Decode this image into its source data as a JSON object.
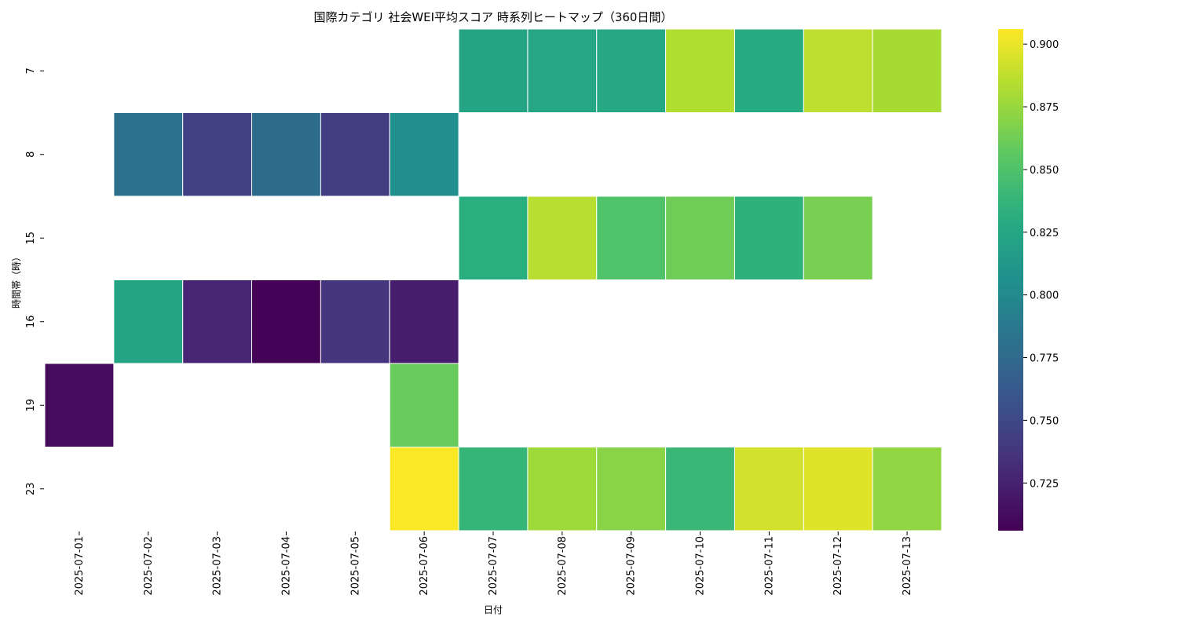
{
  "chart_data": {
    "type": "heatmap",
    "title": "国際カテゴリ 社会WEI平均スコア 時系列ヒートマップ（360日間）",
    "xlabel": "日付",
    "ylabel": "時間帯（時）",
    "x": [
      "2025-07-01",
      "2025-07-02",
      "2025-07-03",
      "2025-07-04",
      "2025-07-05",
      "2025-07-06",
      "2025-07-07",
      "2025-07-08",
      "2025-07-09",
      "2025-07-10",
      "2025-07-11",
      "2025-07-12",
      "2025-07-13"
    ],
    "y": [
      "7",
      "8",
      "15",
      "16",
      "19",
      "23"
    ],
    "values": [
      [
        null,
        null,
        null,
        null,
        null,
        null,
        0.823,
        0.825,
        0.827,
        0.883,
        0.83,
        0.887,
        0.88
      ],
      [
        null,
        0.78,
        0.745,
        0.777,
        0.743,
        0.805,
        null,
        null,
        null,
        null,
        null,
        null,
        null
      ],
      [
        null,
        null,
        null,
        null,
        null,
        null,
        0.832,
        0.885,
        0.85,
        0.862,
        0.835,
        0.865,
        null
      ],
      [
        null,
        0.822,
        0.727,
        0.707,
        0.737,
        0.722,
        null,
        null,
        null,
        null,
        null,
        null,
        null
      ],
      [
        0.712,
        null,
        null,
        null,
        null,
        0.86,
        null,
        null,
        null,
        null,
        null,
        null,
        null
      ],
      [
        null,
        null,
        null,
        null,
        null,
        0.905,
        0.838,
        0.877,
        0.87,
        0.84,
        0.893,
        0.897,
        0.873
      ]
    ],
    "colormap": "viridis",
    "vmin": 0.706,
    "vmax": 0.906,
    "colorbar_ticks": [
      "0.725",
      "0.750",
      "0.775",
      "0.800",
      "0.825",
      "0.850",
      "0.875",
      "0.900"
    ]
  }
}
